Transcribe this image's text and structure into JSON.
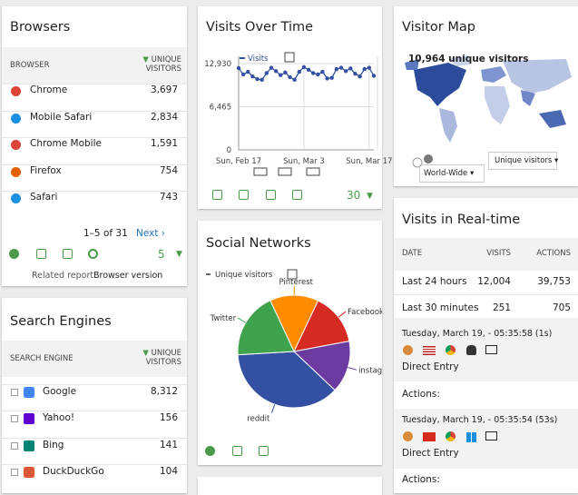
{
  "browsers": {
    "title": "Browsers",
    "columns": [
      "BROWSER",
      "UNIQUE VISITORS"
    ],
    "rows": [
      {
        "name": "Chrome",
        "value": "3,697"
      },
      {
        "name": "Mobile Safari",
        "value": "2,834"
      },
      {
        "name": "Chrome Mobile",
        "value": "1,591"
      },
      {
        "name": "Firefox",
        "value": "754"
      },
      {
        "name": "Safari",
        "value": "743"
      }
    ],
    "pagination": "1–5 of 31",
    "next": "Next ›",
    "limit": "5",
    "related_label": "Related report:",
    "related_link": "Browser version"
  },
  "search_engines": {
    "title": "Search Engines",
    "columns": [
      "SEARCH ENGINE",
      "UNIQUE VISITORS"
    ],
    "rows": [
      {
        "name": "Google",
        "value": "8,312"
      },
      {
        "name": "Yahoo!",
        "value": "156"
      },
      {
        "name": "Bing",
        "value": "141"
      },
      {
        "name": "DuckDuckGo",
        "value": "104"
      }
    ]
  },
  "visits_over_time": {
    "title": "Visits Over Time",
    "period": "30",
    "chart_data": {
      "type": "line",
      "categories": [
        "Sun, Feb 17",
        null,
        null,
        null,
        null,
        null,
        null,
        null,
        null,
        null,
        null,
        null,
        null,
        null,
        "Sun, Mar 3",
        null,
        null,
        null,
        null,
        null,
        null,
        null,
        null,
        null,
        null,
        null,
        null,
        null,
        "Sun, Mar 17",
        null
      ],
      "series": [
        {
          "name": "Visits",
          "color": "#3450a3",
          "values": [
            12250,
            11300,
            11700,
            11000,
            10600,
            10500,
            11500,
            12300,
            11800,
            11200,
            11600,
            10900,
            10500,
            11700,
            12400,
            12000,
            11500,
            11300,
            11700,
            10700,
            10800,
            12100,
            12300,
            11800,
            12200,
            11400,
            11000,
            12100,
            12300,
            11100
          ]
        }
      ],
      "ylim": [
        0,
        12930
      ],
      "yticks": [
        0,
        {
          "value": 6465,
          "label": "6,465"
        },
        {
          "value": 12930,
          "label": "12,930"
        }
      ],
      "grid": true
    }
  },
  "social_networks": {
    "title": "Social Networks",
    "chart_data": {
      "type": "pie",
      "categories": [
        "Pinterest",
        "Facebook",
        "instagram",
        "reddit",
        "Twitter"
      ],
      "series": [
        {
          "name": "Unique visitors",
          "values": [
            14,
            15,
            15,
            37,
            19
          ]
        }
      ],
      "colors": [
        "#ff8c00",
        "#d62b22",
        "#6b3b9f",
        "#3450a3",
        "#3fa34d"
      ]
    }
  },
  "visitor_map": {
    "title": "Visitor Map",
    "summary": "10,964 unique visitors",
    "region": "World-Wide",
    "metric": "Unique visitors"
  },
  "realtime": {
    "title": "Visits in Real-time",
    "columns": [
      "DATE",
      "VISITS",
      "ACTIONS"
    ],
    "rows": [
      [
        "Last 24 hours",
        "12,004",
        "39,753"
      ],
      [
        "Last 30 minutes",
        "251",
        "705"
      ]
    ],
    "visits": [
      {
        "time": "Tuesday, March 19, - 05:35:58 (1s)",
        "referrer": "Direct Entry",
        "actions": "Actions:"
      },
      {
        "time": "Tuesday, March 19, - 05:35:54 (53s)",
        "referrer": "Direct Entry",
        "actions": "Actions:"
      }
    ]
  }
}
